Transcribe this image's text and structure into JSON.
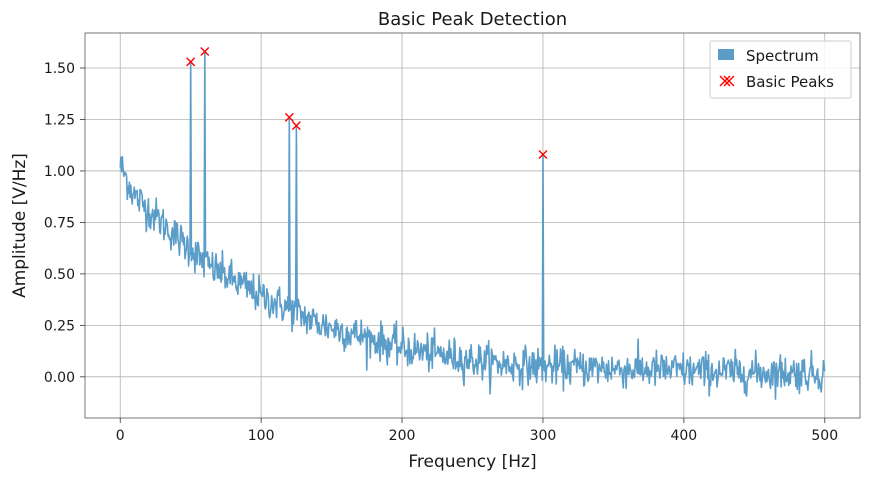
{
  "chart_data": {
    "type": "line",
    "title": "Basic Peak Detection",
    "xlabel": "Frequency [Hz]",
    "ylabel": "Amplitude [V/Hz]",
    "xlim": [
      -25,
      525
    ],
    "ylim": [
      -0.2,
      1.67
    ],
    "x_ticks": [
      0,
      100,
      200,
      300,
      400,
      500
    ],
    "y_ticks": [
      0.0,
      0.25,
      0.5,
      0.75,
      1.0,
      1.25,
      1.5
    ],
    "y_tick_labels": [
      "0.00",
      "0.25",
      "0.50",
      "0.75",
      "1.00",
      "1.25",
      "1.50"
    ],
    "grid": true,
    "legend_position": "top-right",
    "series": [
      {
        "name": "Spectrum",
        "kind": "line",
        "color": "#5b9dc9",
        "x_start": 0,
        "x_step": 0.5,
        "x_end": 500,
        "trend": "decaying noisy spectrum, ~1.03 at 0 Hz decaying to ~0.02 near 500 Hz with noise amplitude ~0.05",
        "trend_points": [
          [
            0,
            1.03
          ],
          [
            10,
            0.88
          ],
          [
            25,
            0.78
          ],
          [
            40,
            0.68
          ],
          [
            50,
            0.62
          ],
          [
            60,
            0.55
          ],
          [
            75,
            0.49
          ],
          [
            90,
            0.43
          ],
          [
            100,
            0.39
          ],
          [
            120,
            0.33
          ],
          [
            140,
            0.26
          ],
          [
            160,
            0.22
          ],
          [
            180,
            0.18
          ],
          [
            200,
            0.14
          ],
          [
            225,
            0.11
          ],
          [
            250,
            0.08
          ],
          [
            275,
            0.06
          ],
          [
            300,
            0.05
          ],
          [
            350,
            0.04
          ],
          [
            400,
            0.03
          ],
          [
            450,
            0.02
          ],
          [
            500,
            0.02
          ]
        ],
        "noise_amplitude": 0.045,
        "spikes": [
          [
            50,
            1.53
          ],
          [
            60,
            1.58
          ],
          [
            120,
            1.26
          ],
          [
            125,
            1.22
          ],
          [
            300,
            1.08
          ]
        ]
      },
      {
        "name": "Basic Peaks",
        "kind": "scatter",
        "marker": "x",
        "color": "#ff0000",
        "points": [
          [
            50,
            1.53
          ],
          [
            60,
            1.58
          ],
          [
            120,
            1.26
          ],
          [
            125,
            1.22
          ],
          [
            300,
            1.08
          ]
        ]
      }
    ]
  }
}
